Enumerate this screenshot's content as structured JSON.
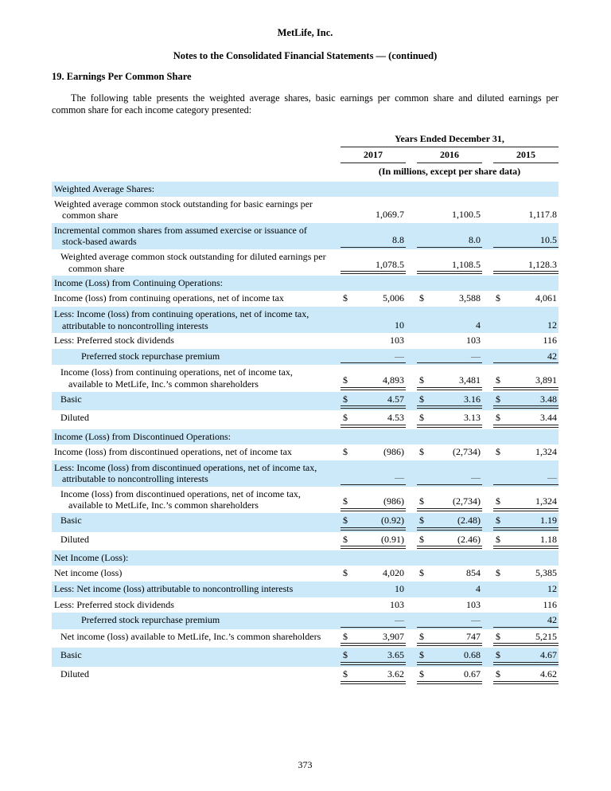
{
  "page": {
    "company": "MetLife, Inc.",
    "subtitle": "Notes to the Consolidated Financial Statements — (continued)",
    "section_heading": "19. Earnings Per Common Share",
    "intro": "The following table presents the weighted average shares, basic earnings per common share and diluted earnings per common share for each income category presented:",
    "page_number": "373"
  },
  "colors": {
    "row_highlight": "#cbe9f9",
    "rule": "#222222"
  },
  "table": {
    "currency": "$",
    "header": {
      "period_label": "Years Ended December 31,",
      "years": [
        "2017",
        "2016",
        "2015"
      ],
      "units_note": "(In millions, except per share data)"
    },
    "rows": [
      {
        "label": "Weighted Average Shares:",
        "type": "section",
        "shaded": true,
        "indent": 0,
        "dollar": false,
        "values": null,
        "rule": "none"
      },
      {
        "label": "Weighted average common stock outstanding for basic earnings per common share",
        "type": "data",
        "shaded": false,
        "indent": 0,
        "dollar": false,
        "values": [
          "1,069.7",
          "1,100.5",
          "1,117.8"
        ],
        "rule": "none"
      },
      {
        "label": "Incremental common shares from assumed exercise or issuance of stock-based awards",
        "type": "data",
        "shaded": true,
        "indent": 0,
        "dollar": false,
        "values": [
          "8.8",
          "8.0",
          "10.5"
        ],
        "rule": "single"
      },
      {
        "label": "Weighted average common stock outstanding for diluted earnings per common share",
        "type": "data",
        "shaded": false,
        "indent": 1,
        "dollar": false,
        "values": [
          "1,078.5",
          "1,108.5",
          "1,128.3"
        ],
        "rule": "double"
      },
      {
        "label": "Income (Loss) from Continuing Operations:",
        "type": "section",
        "shaded": true,
        "indent": 0,
        "dollar": false,
        "values": null,
        "rule": "none"
      },
      {
        "label": "Income (loss) from continuing operations, net of income tax",
        "type": "data",
        "shaded": false,
        "indent": 0,
        "dollar": true,
        "values": [
          "5,006",
          "3,588",
          "4,061"
        ],
        "rule": "none"
      },
      {
        "label": "Less: Income (loss) from continuing operations, net of income tax, attributable to noncontrolling interests",
        "type": "data",
        "shaded": true,
        "indent": 0,
        "dollar": false,
        "values": [
          "10",
          "4",
          "12"
        ],
        "rule": "none"
      },
      {
        "label": "Less: Preferred stock dividends",
        "type": "data",
        "shaded": false,
        "indent": 0,
        "dollar": false,
        "values": [
          "103",
          "103",
          "116"
        ],
        "rule": "none"
      },
      {
        "label": "Preferred stock repurchase premium",
        "type": "data",
        "shaded": true,
        "indent": 2,
        "dollar": false,
        "values": [
          "—",
          "—",
          "42"
        ],
        "rule": "single"
      },
      {
        "label": "Income (loss) from continuing operations, net of income tax, available to MetLife, Inc.’s common shareholders",
        "type": "data",
        "shaded": false,
        "indent": 1,
        "dollar": true,
        "values": [
          "4,893",
          "3,481",
          "3,891"
        ],
        "rule": "double"
      },
      {
        "label": "Basic",
        "type": "data",
        "shaded": true,
        "indent": 1,
        "dollar": true,
        "values": [
          "4.57",
          "3.16",
          "3.48"
        ],
        "rule": "double"
      },
      {
        "label": "Diluted",
        "type": "data",
        "shaded": false,
        "indent": 1,
        "dollar": true,
        "values": [
          "4.53",
          "3.13",
          "3.44"
        ],
        "rule": "double"
      },
      {
        "label": "Income (Loss) from Discontinued Operations:",
        "type": "section",
        "shaded": true,
        "indent": 0,
        "dollar": false,
        "values": null,
        "rule": "none"
      },
      {
        "label": "Income (loss) from discontinued operations, net of income tax",
        "type": "data",
        "shaded": false,
        "indent": 0,
        "dollar": true,
        "values": [
          "(986)",
          "(2,734)",
          "1,324"
        ],
        "rule": "none"
      },
      {
        "label": "Less: Income (loss) from discontinued operations, net of income tax, attributable to noncontrolling interests",
        "type": "data",
        "shaded": true,
        "indent": 0,
        "dollar": false,
        "values": [
          "—",
          "—",
          "—"
        ],
        "rule": "single"
      },
      {
        "label": "Income (loss) from discontinued operations, net of income tax, available to MetLife, Inc.’s common shareholders",
        "type": "data",
        "shaded": false,
        "indent": 1,
        "dollar": true,
        "values": [
          "(986)",
          "(2,734)",
          "1,324"
        ],
        "rule": "double"
      },
      {
        "label": "Basic",
        "type": "data",
        "shaded": true,
        "indent": 1,
        "dollar": true,
        "values": [
          "(0.92)",
          "(2.48)",
          "1.19"
        ],
        "rule": "double"
      },
      {
        "label": "Diluted",
        "type": "data",
        "shaded": false,
        "indent": 1,
        "dollar": true,
        "values": [
          "(0.91)",
          "(2.46)",
          "1.18"
        ],
        "rule": "double"
      },
      {
        "label": "Net Income (Loss):",
        "type": "section",
        "shaded": true,
        "indent": 0,
        "dollar": false,
        "values": null,
        "rule": "none"
      },
      {
        "label": "Net income (loss)",
        "type": "data",
        "shaded": false,
        "indent": 0,
        "dollar": true,
        "values": [
          "4,020",
          "854",
          "5,385"
        ],
        "rule": "none"
      },
      {
        "label": "Less: Net income (loss) attributable to noncontrolling interests",
        "type": "data",
        "shaded": true,
        "indent": 0,
        "dollar": false,
        "values": [
          "10",
          "4",
          "12"
        ],
        "rule": "none"
      },
      {
        "label": "Less: Preferred stock dividends",
        "type": "data",
        "shaded": false,
        "indent": 0,
        "dollar": false,
        "values": [
          "103",
          "103",
          "116"
        ],
        "rule": "none"
      },
      {
        "label": "Preferred stock repurchase premium",
        "type": "data",
        "shaded": true,
        "indent": 2,
        "dollar": false,
        "values": [
          "—",
          "—",
          "42"
        ],
        "rule": "single"
      },
      {
        "label": "Net income (loss) available to MetLife, Inc.’s common shareholders",
        "type": "data",
        "shaded": false,
        "indent": 1,
        "dollar": true,
        "values": [
          "3,907",
          "747",
          "5,215"
        ],
        "rule": "double"
      },
      {
        "label": "Basic",
        "type": "data",
        "shaded": true,
        "indent": 1,
        "dollar": true,
        "values": [
          "3.65",
          "0.68",
          "4.67"
        ],
        "rule": "double"
      },
      {
        "label": "Diluted",
        "type": "data",
        "shaded": false,
        "indent": 1,
        "dollar": true,
        "values": [
          "3.62",
          "0.67",
          "4.62"
        ],
        "rule": "double"
      }
    ]
  }
}
